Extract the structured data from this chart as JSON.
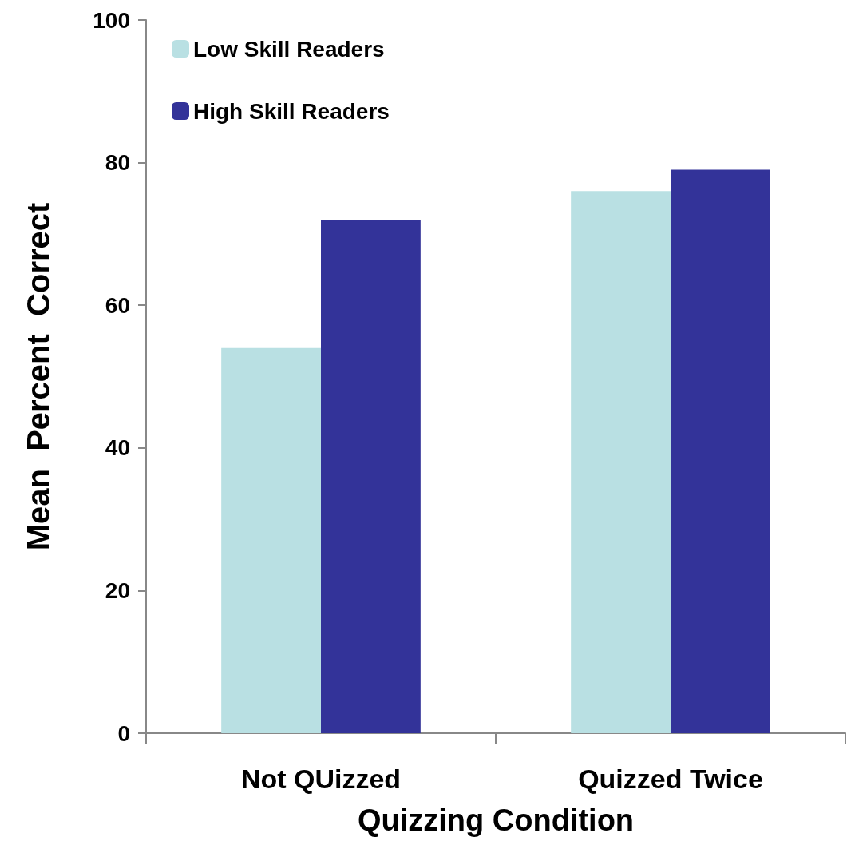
{
  "chart_data": {
    "type": "bar",
    "xlabel": "Quizzing Condition",
    "ylabel": "Mean  Percent  Correct",
    "categories": [
      "Not QUizzed",
      "Quizzed Twice"
    ],
    "series": [
      {
        "name": "Low Skill Readers",
        "color": "#b9e0e3",
        "values": [
          54,
          76
        ]
      },
      {
        "name": "High Skill Readers",
        "color": "#333399",
        "values": [
          72,
          79
        ]
      }
    ],
    "ylim": [
      0,
      100
    ],
    "yticks": [
      0,
      20,
      40,
      60,
      80,
      100
    ],
    "grid": false,
    "legend": "top left"
  }
}
